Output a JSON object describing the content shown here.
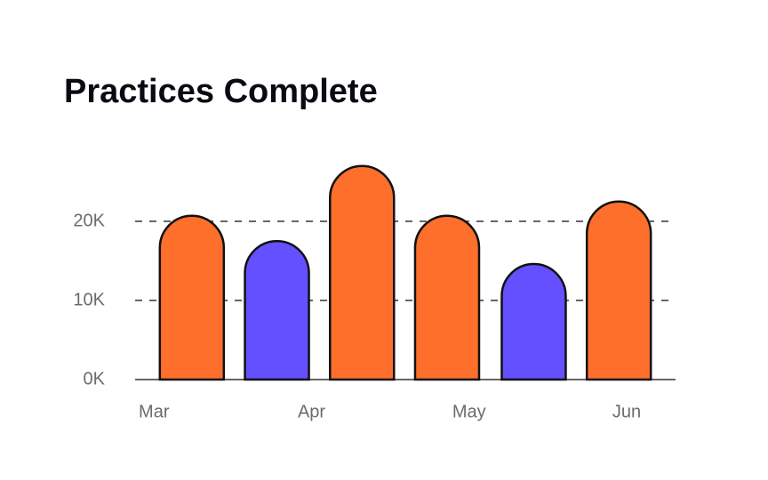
{
  "chart_data": {
    "type": "bar",
    "title": "Practices Complete",
    "x": [
      3.24,
      3.78,
      4.32,
      4.86,
      5.41,
      5.95
    ],
    "values": [
      20700,
      17500,
      27000,
      20700,
      14600,
      22500
    ],
    "colors": [
      "#ff6f2c",
      "#6450ff",
      "#ff6f2c",
      "#ff6f2c",
      "#6450ff",
      "#ff6f2c"
    ],
    "xlim": [
      2.88,
      6.31
    ],
    "xticks": [
      {
        "value": 3,
        "label": "Mar"
      },
      {
        "value": 4,
        "label": "Apr"
      },
      {
        "value": 5,
        "label": "May"
      },
      {
        "value": 6,
        "label": "Jun"
      }
    ],
    "ylim": [
      0,
      30000
    ],
    "yticks": [
      {
        "value": 0,
        "label": "0K"
      },
      {
        "value": 10000,
        "label": "10K"
      },
      {
        "value": 20000,
        "label": "20K"
      }
    ],
    "grid": true
  }
}
